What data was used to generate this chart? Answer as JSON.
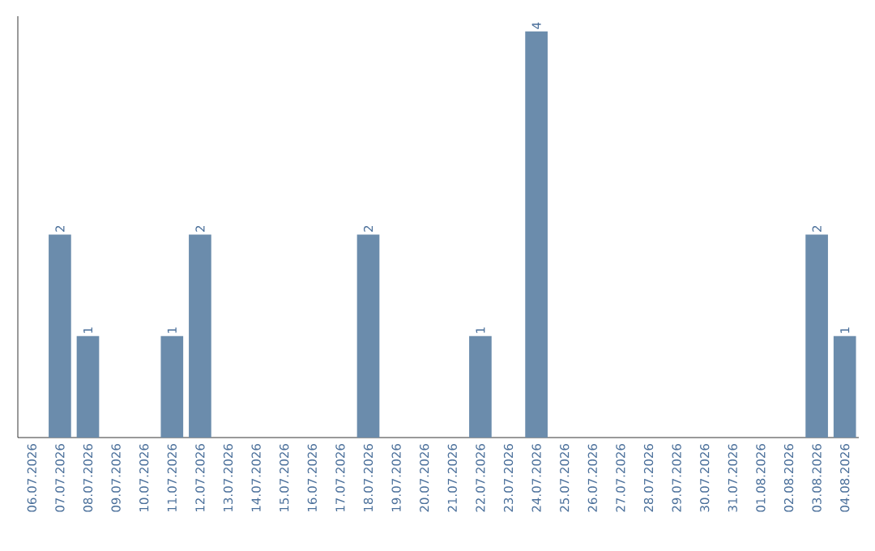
{
  "chart_data": {
    "type": "bar",
    "categories": [
      "06.07.2026",
      "07.07.2026",
      "08.07.2026",
      "09.07.2026",
      "10.07.2026",
      "11.07.2026",
      "12.07.2026",
      "13.07.2026",
      "14.07.2026",
      "15.07.2026",
      "16.07.2026",
      "17.07.2026",
      "18.07.2026",
      "19.07.2026",
      "20.07.2026",
      "21.07.2026",
      "22.07.2026",
      "23.07.2026",
      "24.07.2026",
      "25.07.2026",
      "26.07.2026",
      "27.07.2026",
      "28.07.2026",
      "29.07.2026",
      "30.07.2026",
      "31.07.2026",
      "01.08.2026",
      "02.08.2026",
      "03.08.2026",
      "04.08.2026"
    ],
    "values": [
      0,
      2,
      1,
      0,
      0,
      1,
      2,
      0,
      0,
      0,
      0,
      0,
      2,
      0,
      0,
      0,
      1,
      0,
      4,
      0,
      0,
      0,
      0,
      0,
      0,
      0,
      0,
      0,
      2,
      1
    ],
    "value_labels": [
      null,
      "2",
      "1",
      null,
      null,
      "1",
      "2",
      null,
      null,
      null,
      null,
      null,
      "2",
      null,
      null,
      null,
      "1",
      null,
      "4",
      null,
      null,
      null,
      null,
      null,
      null,
      null,
      null,
      null,
      "2",
      "1"
    ],
    "color": "#6b8cac",
    "ylim": [
      0,
      4.15
    ],
    "tick_labels": "x"
  }
}
